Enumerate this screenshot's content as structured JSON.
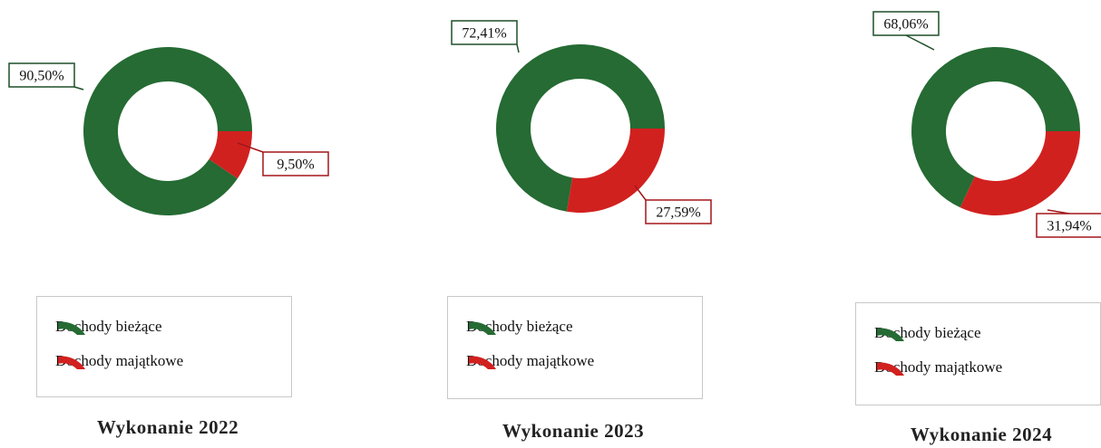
{
  "colors": {
    "current": "#256b33",
    "capital": "#d1211f"
  },
  "legend_items": [
    {
      "label": "Dochody bieżące",
      "color": "#256b33",
      "icon": "arc-swatch-icon"
    },
    {
      "label": "Dochody majątkowe",
      "color": "#d1211f",
      "icon": "arc-swatch-icon"
    }
  ],
  "chart_data": [
    {
      "type": "pie",
      "title": "Wykonanie 2022",
      "slices": [
        {
          "name": "Dochody bieżące",
          "value": 90.5,
          "label": "90,50%"
        },
        {
          "name": "Dochody majątkowe",
          "value": 9.5,
          "label": "9,50%"
        }
      ]
    },
    {
      "type": "pie",
      "title": "Wykonanie 2023",
      "slices": [
        {
          "name": "Dochody bieżące",
          "value": 72.41,
          "label": "72,41%"
        },
        {
          "name": "Dochody majątkowe",
          "value": 27.59,
          "label": "27,59%"
        }
      ]
    },
    {
      "type": "pie",
      "title": "Wykonanie 2024",
      "slices": [
        {
          "name": "Dochody bieżące",
          "value": 68.06,
          "label": "68,06%"
        },
        {
          "name": "Dochody majątkowe",
          "value": 31.94,
          "label": "31,94%"
        }
      ]
    }
  ]
}
